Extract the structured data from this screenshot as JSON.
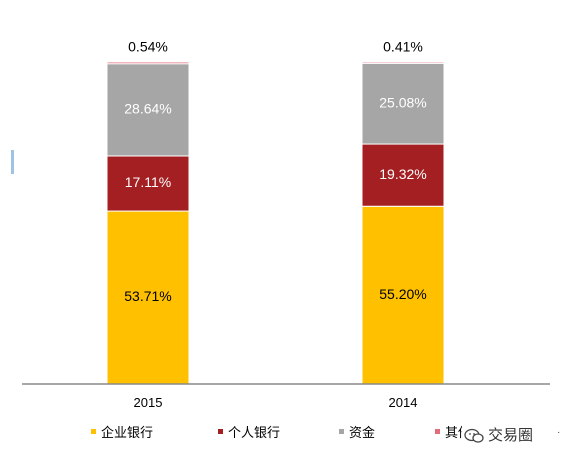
{
  "chart_data": {
    "type": "bar",
    "stacked": true,
    "categories": [
      "2015",
      "2014"
    ],
    "ylim": [
      0,
      100
    ],
    "series": [
      {
        "name": "企业银行",
        "values": [
          53.71,
          55.2
        ],
        "labels": [
          "53.71%",
          "55.20%"
        ],
        "color": "#FFC000",
        "label_color": "#000000"
      },
      {
        "name": "个人银行",
        "values": [
          17.11,
          19.32
        ],
        "labels": [
          "17.11%",
          "19.32%"
        ],
        "color": "#A31F22",
        "label_color": "#FFFFFF"
      },
      {
        "name": "资金",
        "values": [
          28.64,
          25.08
        ],
        "labels": [
          "28.64%",
          "25.08%"
        ],
        "color": "#A6A6A6",
        "label_color": "#FFFFFF"
      },
      {
        "name": "其他",
        "values": [
          0.54,
          0.41
        ],
        "labels": [
          "0.54%",
          "0.41%"
        ],
        "color": "#E26B7C",
        "label_color": "#000000"
      }
    ],
    "legend_visible_text": [
      "企业银行",
      "个人银行",
      "资金",
      "其他"
    ],
    "legend_placement": "bottom",
    "grid": false
  },
  "watermark": {
    "text": "交易圈",
    "icon": "wechat-icon"
  }
}
